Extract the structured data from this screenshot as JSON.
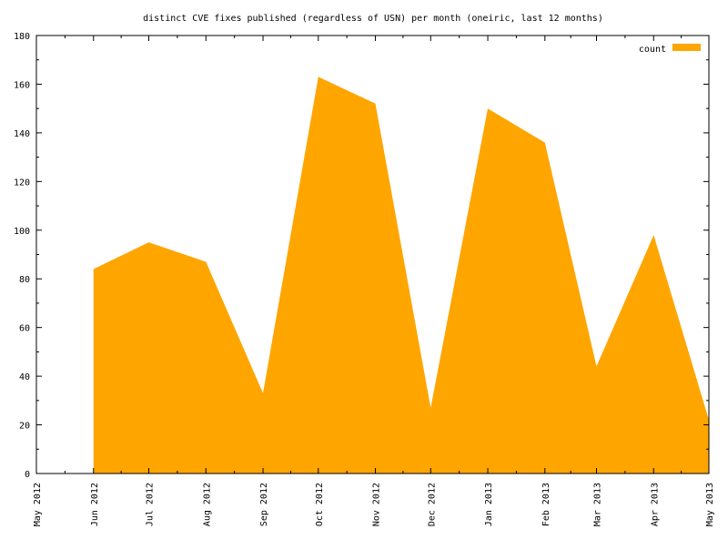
{
  "chart_data": {
    "type": "area",
    "title": "distinct CVE fixes published (regardless of USN) per month (oneiric, last 12 months)",
    "xlabel": "",
    "ylabel": "",
    "x": [
      "May 2012",
      "Jun 2012",
      "Jul 2012",
      "Aug 2012",
      "Sep 2012",
      "Oct 2012",
      "Nov 2012",
      "Dec 2012",
      "Jan 2013",
      "Feb 2013",
      "Mar 2013",
      "Apr 2013",
      "May 2013"
    ],
    "x_dates": [
      "2012-05-01",
      "2012-06-01",
      "2012-07-01",
      "2012-08-01",
      "2012-09-01",
      "2012-10-01",
      "2012-11-01",
      "2012-12-01",
      "2013-01-01",
      "2013-02-01",
      "2013-03-01",
      "2013-04-01",
      "2013-05-01"
    ],
    "series": [
      {
        "name": "count",
        "x": [
          "2012-06-01",
          "2012-07-01",
          "2012-08-01",
          "2012-09-01",
          "2012-10-01",
          "2012-11-01",
          "2012-12-01",
          "2013-01-01",
          "2013-02-01",
          "2013-03-01",
          "2013-04-01",
          "2013-05-01"
        ],
        "values": [
          84,
          95,
          87,
          33,
          163,
          152,
          27,
          150,
          136,
          44,
          98,
          22
        ],
        "color": "#ffa500"
      }
    ],
    "ylim": [
      0,
      180
    ],
    "yticks": [
      0,
      20,
      40,
      60,
      80,
      100,
      120,
      140,
      160,
      180
    ],
    "xlim": [
      "2012-05-01",
      "2013-05-01"
    ],
    "grid": false,
    "legend": "top-right"
  }
}
